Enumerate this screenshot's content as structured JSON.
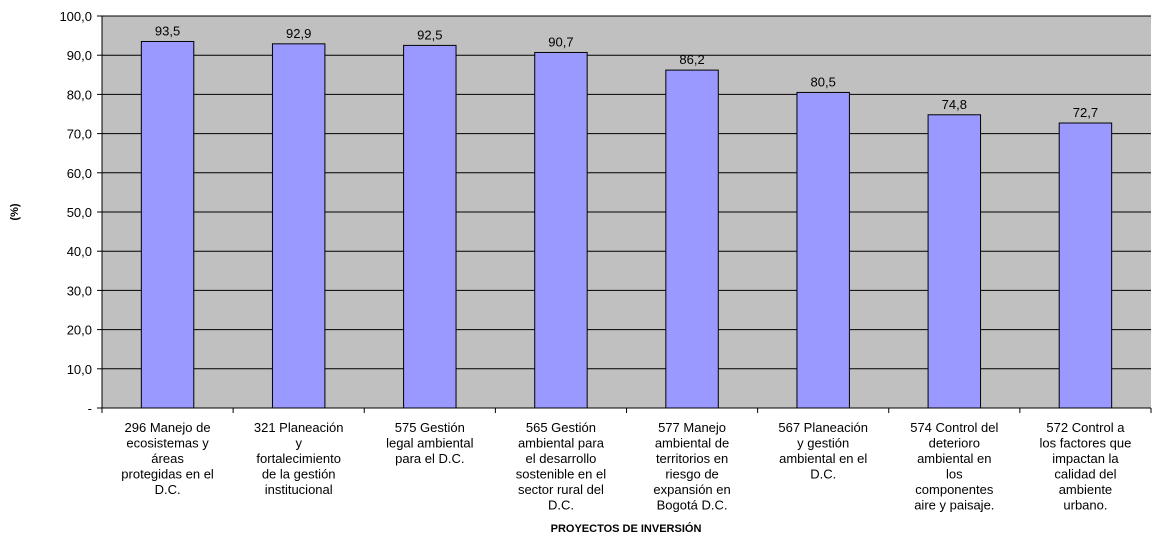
{
  "chart_data": {
    "type": "bar",
    "title": "",
    "xlabel": "PROYECTOS DE INVERSIÓN",
    "ylabel": "(%)",
    "ylim": [
      0,
      100
    ],
    "yticks": [
      "-",
      "10,0",
      "20,0",
      "30,0",
      "40,0",
      "50,0",
      "60,0",
      "70,0",
      "80,0",
      "90,0",
      "100,0"
    ],
    "grid": true,
    "legend": "none",
    "colors": {
      "plot_bg": "#c0c0c0",
      "bar": "#9999ff",
      "bar_border": "#000000",
      "grid": "#000000"
    },
    "categories": [
      [
        "296 Manejo de",
        "ecosistemas y",
        "áreas",
        "protegidas en el",
        "D.C."
      ],
      [
        "321 Planeación",
        "y",
        "fortalecimiento",
        "de la gestión",
        "institucional"
      ],
      [
        "575 Gestión",
        "legal ambiental",
        "para el D.C."
      ],
      [
        "565 Gestión",
        "ambiental para",
        "el desarrollo",
        "sostenible en el",
        "sector rural del",
        "D.C."
      ],
      [
        "577 Manejo",
        "ambiental de",
        "territorios en",
        "riesgo de",
        "expansión en",
        "Bogotá D.C."
      ],
      [
        "567 Planeación",
        "y gestión",
        "ambiental en el",
        "D.C."
      ],
      [
        "574 Control del",
        "deterioro",
        "ambiental en",
        "los",
        "componentes",
        "aire y paisaje."
      ],
      [
        "572 Control a",
        "los factores que",
        "impactan la",
        "calidad del",
        "ambiente",
        "urbano."
      ]
    ],
    "values": [
      93.5,
      92.9,
      92.5,
      90.7,
      86.2,
      80.5,
      74.8,
      72.7
    ],
    "value_labels": [
      "93,5",
      "92,9",
      "92,5",
      "90,7",
      "86,2",
      "80,5",
      "74,8",
      "72,7"
    ]
  }
}
